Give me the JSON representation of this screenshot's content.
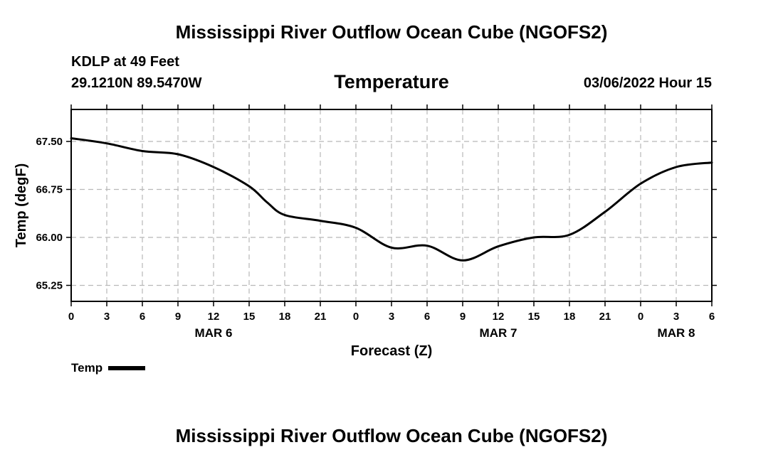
{
  "header": {
    "title": "Mississippi River Outflow Ocean Cube (NGOFS2)",
    "station": "KDLP at 49 Feet",
    "coords": "29.1210N  89.5470W",
    "variable": "Temperature",
    "datetime": "03/06/2022 Hour 15"
  },
  "footer": {
    "title": "Mississippi River Outflow Ocean Cube (NGOFS2)"
  },
  "legend": {
    "label": "Temp"
  },
  "chart_data": {
    "type": "line",
    "title": "Temperature",
    "xlabel": "Forecast (Z)",
    "ylabel": "Temp (degF)",
    "xlim": [
      0,
      54
    ],
    "ylim": [
      65.0,
      68.0
    ],
    "grid": true,
    "x_ticks": [
      0,
      3,
      6,
      9,
      12,
      15,
      18,
      21,
      24,
      27,
      30,
      33,
      36,
      39,
      42,
      45,
      48,
      51,
      54
    ],
    "x_tick_labels": [
      "0",
      "3",
      "6",
      "9",
      "12",
      "15",
      "18",
      "21",
      "0",
      "3",
      "6",
      "9",
      "12",
      "15",
      "18",
      "21",
      "0",
      "3",
      "6"
    ],
    "y_ticks": [
      65.25,
      66.0,
      66.75,
      67.5
    ],
    "y_tick_labels": [
      "65.25",
      "66.00",
      "66.75",
      "67.50"
    ],
    "date_labels": [
      {
        "x": 12,
        "text": "MAR 6"
      },
      {
        "x": 36,
        "text": "MAR 7"
      },
      {
        "x": 51,
        "text": "MAR 8"
      }
    ],
    "series": [
      {
        "name": "Temp",
        "color": "#000000",
        "x": [
          0,
          3,
          6,
          9,
          12,
          15,
          16.5,
          18,
          21,
          24,
          27,
          30,
          33,
          36,
          39,
          42,
          45,
          48,
          51,
          54
        ],
        "values": [
          67.55,
          67.47,
          67.35,
          67.3,
          67.1,
          66.8,
          66.55,
          66.35,
          66.26,
          66.15,
          65.84,
          65.87,
          65.64,
          65.86,
          66.0,
          66.04,
          66.4,
          66.84,
          67.1,
          67.17
        ]
      }
    ]
  }
}
